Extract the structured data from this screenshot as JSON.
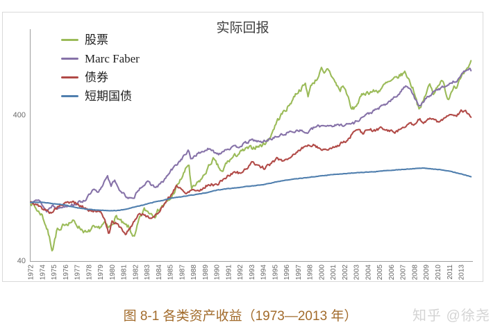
{
  "chart_data": {
    "type": "line",
    "title": "实际回报",
    "x_axis": {
      "start": "1972-12",
      "end": "2013-12",
      "tick_interval_months": 13,
      "tick_labels": [
        "1972",
        "1974",
        "1975",
        "1976",
        "1977",
        "1978",
        "1979",
        "1980",
        "1981",
        "1982",
        "1983",
        "1984",
        "1985",
        "1987",
        "1988",
        "1989",
        "1990",
        "1991",
        "1992",
        "1993",
        "1994",
        "1995",
        "1996",
        "1997",
        "1998",
        "2000",
        "2001",
        "2002",
        "2003",
        "2004",
        "2005",
        "2006",
        "2007",
        "2008",
        "2009",
        "2010",
        "2011",
        "2013"
      ]
    },
    "y_axis": {
      "scale": "log",
      "tick_labels": [
        "400",
        "40"
      ],
      "tick_values": [
        400,
        40
      ]
    },
    "series": [
      {
        "key": "stocks",
        "name": "股票",
        "color": "#9bbb59",
        "anchors": [
          [
            1972.92,
            100
          ],
          [
            1973.2,
            96
          ],
          [
            1973.6,
            87
          ],
          [
            1974.0,
            82
          ],
          [
            1974.5,
            64
          ],
          [
            1974.95,
            47
          ],
          [
            1975.4,
            66
          ],
          [
            1975.7,
            62
          ],
          [
            1976.0,
            71
          ],
          [
            1976.9,
            74
          ],
          [
            1977.5,
            67
          ],
          [
            1978.2,
            61
          ],
          [
            1978.7,
            67
          ],
          [
            1979.1,
            65
          ],
          [
            1979.8,
            72
          ],
          [
            1980.2,
            66
          ],
          [
            1980.9,
            80
          ],
          [
            1981.6,
            70
          ],
          [
            1982.0,
            68
          ],
          [
            1982.6,
            57
          ],
          [
            1983.0,
            75
          ],
          [
            1983.5,
            89
          ],
          [
            1984.5,
            82
          ],
          [
            1985.0,
            92
          ],
          [
            1985.9,
            104
          ],
          [
            1987.0,
            148
          ],
          [
            1987.65,
            185
          ],
          [
            1987.9,
            122
          ],
          [
            1988.4,
            133
          ],
          [
            1989.0,
            150
          ],
          [
            1989.9,
            198
          ],
          [
            1990.8,
            158
          ],
          [
            1991.1,
            185
          ],
          [
            1992.0,
            210
          ],
          [
            1993.0,
            232
          ],
          [
            1994.4,
            245
          ],
          [
            1995.1,
            270
          ],
          [
            1995.9,
            365
          ],
          [
            1996.5,
            420
          ],
          [
            1996.9,
            450
          ],
          [
            1997.6,
            555
          ],
          [
            1998.5,
            645
          ],
          [
            1998.75,
            545
          ],
          [
            1999.1,
            650
          ],
          [
            1999.5,
            690
          ],
          [
            2000.0,
            815
          ],
          [
            2000.25,
            745
          ],
          [
            2000.6,
            830
          ],
          [
            2001.2,
            680
          ],
          [
            2001.75,
            580
          ],
          [
            2001.95,
            640
          ],
          [
            2002.4,
            555
          ],
          [
            2002.75,
            435
          ],
          [
            2003.1,
            445
          ],
          [
            2003.9,
            560
          ],
          [
            2004.7,
            575
          ],
          [
            2005.3,
            580
          ],
          [
            2006.0,
            650
          ],
          [
            2006.6,
            680
          ],
          [
            2007.3,
            740
          ],
          [
            2007.8,
            780
          ],
          [
            2008.2,
            680
          ],
          [
            2008.7,
            560
          ],
          [
            2008.95,
            470
          ],
          [
            2009.2,
            435
          ],
          [
            2009.9,
            600
          ],
          [
            2010.05,
            645
          ],
          [
            2010.45,
            560
          ],
          [
            2010.9,
            655
          ],
          [
            2011.3,
            670
          ],
          [
            2011.8,
            505
          ],
          [
            2012.3,
            640
          ],
          [
            2012.5,
            615
          ],
          [
            2012.9,
            690
          ],
          [
            2013.3,
            765
          ],
          [
            2013.7,
            820
          ],
          [
            2013.92,
            950
          ]
        ]
      },
      {
        "key": "marc-faber",
        "name": "Marc Faber",
        "color": "#8672a8",
        "anchors": [
          [
            1972.92,
            100
          ],
          [
            1973.4,
            107
          ],
          [
            1973.9,
            99
          ],
          [
            1974.4,
            87
          ],
          [
            1975.0,
            96
          ],
          [
            1975.5,
            91
          ],
          [
            1976.2,
            95
          ],
          [
            1977.0,
            97
          ],
          [
            1978.0,
            104
          ],
          [
            1978.8,
            122
          ],
          [
            1979.2,
            115
          ],
          [
            1979.6,
            130
          ],
          [
            1980.05,
            155
          ],
          [
            1980.4,
            128
          ],
          [
            1980.75,
            143
          ],
          [
            1981.3,
            118
          ],
          [
            1982.0,
            108
          ],
          [
            1982.5,
            104
          ],
          [
            1982.9,
            122
          ],
          [
            1983.5,
            133
          ],
          [
            1983.9,
            137
          ],
          [
            1984.6,
            126
          ],
          [
            1985.3,
            140
          ],
          [
            1986.0,
            165
          ],
          [
            1986.8,
            192
          ],
          [
            1987.6,
            225
          ],
          [
            1987.85,
            198
          ],
          [
            1988.3,
            212
          ],
          [
            1989.4,
            232
          ],
          [
            1990.4,
            215
          ],
          [
            1991.1,
            232
          ],
          [
            1992.3,
            242
          ],
          [
            1993.6,
            268
          ],
          [
            1994.4,
            258
          ],
          [
            1995.0,
            268
          ],
          [
            1995.9,
            283
          ],
          [
            1997.0,
            302
          ],
          [
            1997.9,
            315
          ],
          [
            1998.6,
            298
          ],
          [
            1999.4,
            328
          ],
          [
            2000.2,
            338
          ],
          [
            2001.2,
            336
          ],
          [
            2002.3,
            342
          ],
          [
            2003.0,
            350
          ],
          [
            2004.0,
            392
          ],
          [
            2005.0,
            428
          ],
          [
            2006.0,
            472
          ],
          [
            2007.0,
            535
          ],
          [
            2007.9,
            635
          ],
          [
            2008.25,
            610
          ],
          [
            2008.9,
            480
          ],
          [
            2009.15,
            455
          ],
          [
            2009.9,
            530
          ],
          [
            2010.7,
            585
          ],
          [
            2011.4,
            625
          ],
          [
            2012.0,
            655
          ],
          [
            2012.6,
            690
          ],
          [
            2013.1,
            755
          ],
          [
            2013.6,
            835
          ],
          [
            2013.92,
            805
          ]
        ]
      },
      {
        "key": "bonds",
        "name": "债券",
        "color": "#b14a47",
        "anchors": [
          [
            1972.92,
            100
          ],
          [
            1973.5,
            96
          ],
          [
            1974.0,
            91
          ],
          [
            1974.8,
            85
          ],
          [
            1975.5,
            94
          ],
          [
            1976.3,
            99
          ],
          [
            1976.9,
            101
          ],
          [
            1977.6,
            94
          ],
          [
            1978.5,
            88
          ],
          [
            1979.4,
            85
          ],
          [
            1979.8,
            78
          ],
          [
            1980.2,
            61
          ],
          [
            1980.5,
            74
          ],
          [
            1981.0,
            71
          ],
          [
            1981.4,
            65
          ],
          [
            1981.8,
            61
          ],
          [
            1982.2,
            67
          ],
          [
            1983.0,
            84
          ],
          [
            1983.6,
            81
          ],
          [
            1984.4,
            78
          ],
          [
            1984.8,
            86
          ],
          [
            1985.5,
            100
          ],
          [
            1986.0,
            112
          ],
          [
            1986.5,
            131
          ],
          [
            1987.3,
            116
          ],
          [
            1988.0,
            123
          ],
          [
            1988.6,
            120
          ],
          [
            1989.5,
            133
          ],
          [
            1990.3,
            132
          ],
          [
            1991.0,
            147
          ],
          [
            1992.0,
            162
          ],
          [
            1992.5,
            158
          ],
          [
            1993.6,
            188
          ],
          [
            1994.7,
            171
          ],
          [
            1995.9,
            200
          ],
          [
            1996.4,
            192
          ],
          [
            1997.0,
            203
          ],
          [
            1998.3,
            238
          ],
          [
            1999.2,
            250
          ],
          [
            2000.0,
            231
          ],
          [
            2000.9,
            232
          ],
          [
            2001.7,
            252
          ],
          [
            2002.3,
            262
          ],
          [
            2003.3,
            318
          ],
          [
            2003.8,
            298
          ],
          [
            2004.4,
            315
          ],
          [
            2005.0,
            310
          ],
          [
            2005.6,
            325
          ],
          [
            2006.2,
            310
          ],
          [
            2007.0,
            305
          ],
          [
            2007.6,
            330
          ],
          [
            2008.2,
            355
          ],
          [
            2008.6,
            330
          ],
          [
            2009.1,
            370
          ],
          [
            2009.5,
            355
          ],
          [
            2010.1,
            378
          ],
          [
            2010.7,
            362
          ],
          [
            2011.1,
            357
          ],
          [
            2011.7,
            390
          ],
          [
            2012.1,
            402
          ],
          [
            2012.5,
            390
          ],
          [
            2013.0,
            420
          ],
          [
            2013.4,
            428
          ],
          [
            2013.92,
            380
          ]
        ]
      },
      {
        "key": "tbills",
        "name": "短期国债",
        "color": "#507fae",
        "anchors": [
          [
            1972.92,
            100
          ],
          [
            1974.0,
            100
          ],
          [
            1975.0,
            98
          ],
          [
            1976.0,
            96.5
          ],
          [
            1977.0,
            92.5
          ],
          [
            1978.0,
            90
          ],
          [
            1979.0,
            88.5
          ],
          [
            1979.9,
            88
          ],
          [
            1980.6,
            87.5
          ],
          [
            1981.3,
            88.5
          ],
          [
            1982.1,
            91
          ],
          [
            1983.2,
            95
          ],
          [
            1984.2,
            99.5
          ],
          [
            1985.2,
            103
          ],
          [
            1986.0,
            107
          ],
          [
            1987.2,
            110
          ],
          [
            1988.2,
            113
          ],
          [
            1989.2,
            116
          ],
          [
            1990.2,
            121
          ],
          [
            1991.2,
            124
          ],
          [
            1992.2,
            126
          ],
          [
            1993.2,
            129
          ],
          [
            1994.2,
            131
          ],
          [
            1995.2,
            135
          ],
          [
            1995.9,
            139
          ],
          [
            1997.0,
            143
          ],
          [
            1998.0,
            146
          ],
          [
            1999.0,
            149
          ],
          [
            2000.0,
            152
          ],
          [
            2001.0,
            155
          ],
          [
            2002.0,
            157
          ],
          [
            2003.0,
            159
          ],
          [
            2004.0,
            161
          ],
          [
            2005.0,
            162
          ],
          [
            2006.0,
            165
          ],
          [
            2007.0,
            167
          ],
          [
            2008.0,
            169
          ],
          [
            2008.8,
            171
          ],
          [
            2009.6,
            172
          ],
          [
            2010.4,
            169
          ],
          [
            2011.2,
            167
          ],
          [
            2012.0,
            163
          ],
          [
            2012.8,
            158
          ],
          [
            2013.4,
            154
          ],
          [
            2013.92,
            150
          ]
        ]
      }
    ]
  },
  "caption": {
    "text": "图 8-1 各类资产收益（1973—2013 年）",
    "color": "#a26b2b"
  },
  "watermark": {
    "text": "知乎 @徐尧",
    "color": "#d4d4d4"
  },
  "frame": {
    "border_color": "#d9d9d9"
  }
}
